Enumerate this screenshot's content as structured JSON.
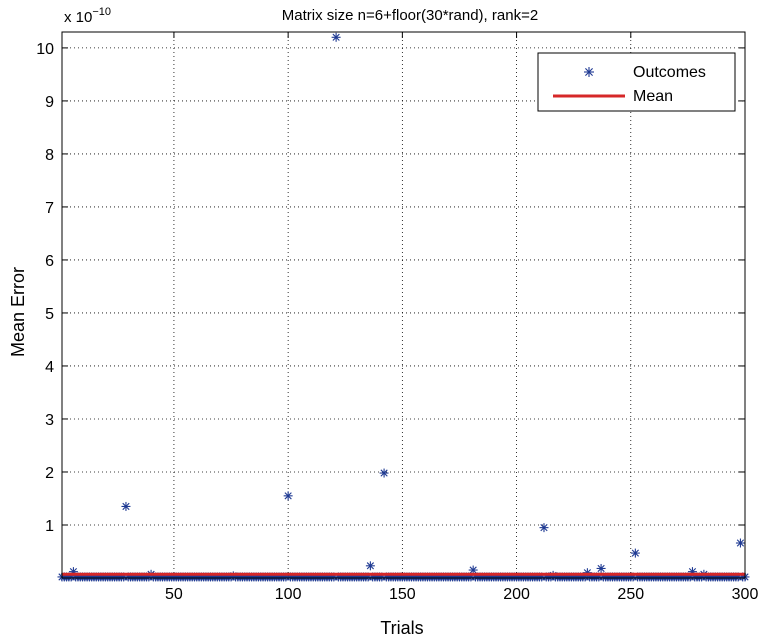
{
  "chart_data": {
    "type": "scatter",
    "title": "Matrix size n=6+floor(30*rand), rank=2",
    "xlabel": "Trials",
    "ylabel": "Mean Error",
    "exponent_base": "x 10",
    "exponent_power": "−10",
    "xlim": [
      1,
      300
    ],
    "ylim": [
      0,
      10.3
    ],
    "xticks": [
      50,
      100,
      150,
      200,
      250,
      300
    ],
    "yticks": [
      1,
      2,
      3,
      4,
      5,
      6,
      7,
      8,
      9,
      10
    ],
    "grid": true,
    "legend_position": "top-right",
    "series": [
      {
        "name": "Outcomes",
        "marker": "asterisk",
        "color": "#1f3a93",
        "baseline_value": 0.02,
        "outliers": [
          {
            "x": 6,
            "y": 0.12
          },
          {
            "x": 29,
            "y": 1.35
          },
          {
            "x": 40,
            "y": 0.07
          },
          {
            "x": 76,
            "y": 0.04
          },
          {
            "x": 100,
            "y": 1.55
          },
          {
            "x": 121,
            "y": 10.2
          },
          {
            "x": 136,
            "y": 0.23
          },
          {
            "x": 142,
            "y": 1.98
          },
          {
            "x": 181,
            "y": 0.15
          },
          {
            "x": 212,
            "y": 0.95
          },
          {
            "x": 216,
            "y": 0.05
          },
          {
            "x": 231,
            "y": 0.1
          },
          {
            "x": 237,
            "y": 0.18
          },
          {
            "x": 252,
            "y": 0.47
          },
          {
            "x": 277,
            "y": 0.12
          },
          {
            "x": 282,
            "y": 0.07
          },
          {
            "x": 298,
            "y": 0.66
          }
        ]
      },
      {
        "name": "Mean",
        "type": "line",
        "color": "#d62728",
        "value": 0.07
      }
    ]
  }
}
